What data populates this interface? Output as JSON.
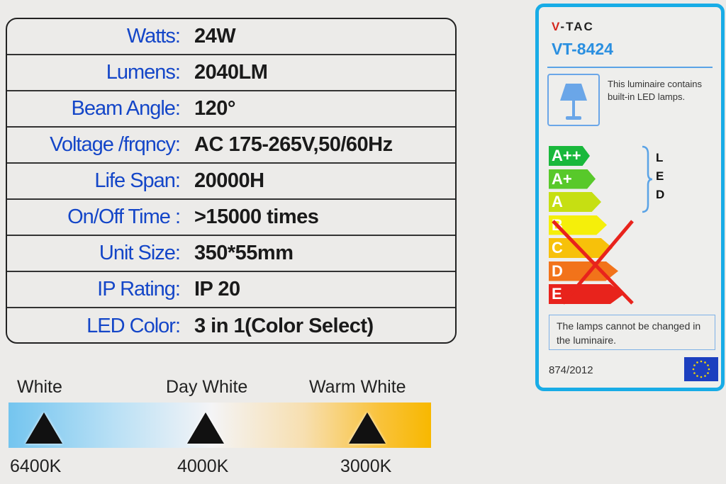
{
  "specs": [
    {
      "label": "Watts:",
      "value": "24W"
    },
    {
      "label": "Lumens:",
      "value": "2040LM"
    },
    {
      "label": "Beam Angle:",
      "value": "120°"
    },
    {
      "label": "Voltage /frqncy:",
      "value": "AC 175-265V,50/60Hz"
    },
    {
      "label": "Life Span:",
      "value": "20000H"
    },
    {
      "label": "On/Off Time :",
      "value": ">15000 times"
    },
    {
      "label": "Unit Size:",
      "value": "350*55mm"
    },
    {
      "label": "IP Rating:",
      "value": "IP 20"
    },
    {
      "label": "LED Color:",
      "value": "3 in 1(Color Select)"
    }
  ],
  "color_temp": {
    "names": [
      "White",
      "Day White",
      "Warm White"
    ],
    "kelvin": [
      "6400K",
      "4000K",
      "3000K"
    ]
  },
  "energy_label": {
    "brand": "V-TAC",
    "model": "VT-8424",
    "contains_text": "This luminaire contains built-in LED lamps.",
    "classes": [
      {
        "name": "A++",
        "color": "#19b83c"
      },
      {
        "name": "A+",
        "color": "#58c92a"
      },
      {
        "name": "A",
        "color": "#c6df12"
      },
      {
        "name": "B",
        "color": "#f5ef0a"
      },
      {
        "name": "C",
        "color": "#f7c10a"
      },
      {
        "name": "D",
        "color": "#f2731a"
      },
      {
        "name": "E",
        "color": "#e8231c"
      }
    ],
    "led_letters": [
      "L",
      "E",
      "D"
    ],
    "note": "The lamps cannot be changed in the luminaire.",
    "regulation": "874/2012",
    "border_color": "#18ace6"
  }
}
